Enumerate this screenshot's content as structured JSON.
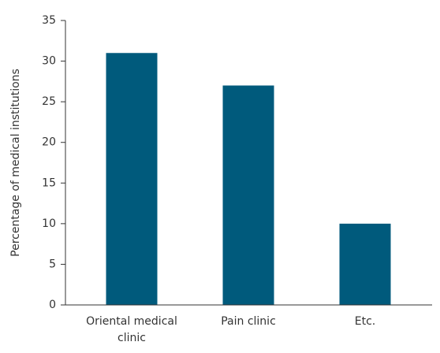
{
  "chart_data": {
    "type": "bar",
    "categories": [
      "Oriental medical clinic",
      "Pain clinic",
      "Etc."
    ],
    "category_label_lines": [
      [
        "Oriental medical",
        "clinic"
      ],
      [
        "Pain clinic"
      ],
      [
        "Etc."
      ]
    ],
    "values": [
      31,
      27,
      10
    ],
    "title": "",
    "xlabel": "",
    "ylabel": "Percentage of medical institutions",
    "ylim": [
      0,
      35
    ],
    "yticks": [
      0,
      5,
      10,
      15,
      20,
      25,
      30,
      35
    ],
    "grid": false,
    "legend": "none",
    "bar_color": "#005a7c"
  }
}
